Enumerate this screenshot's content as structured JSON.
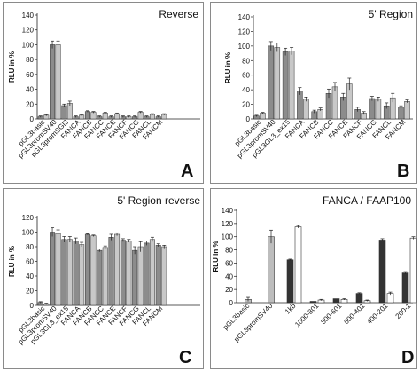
{
  "chart_data": [
    {
      "panel": "A",
      "type": "bar",
      "title": "Reverse",
      "ylabel": "RLU in %",
      "ylim": [
        0,
        140
      ],
      "yticks": [
        0,
        20,
        40,
        60,
        80,
        100,
        120,
        140
      ],
      "categories": [
        "pGL3basic",
        "pGL3promSV40",
        "pGL3promSGl3",
        "FANCA",
        "FANCB",
        "FANCC",
        "FANCE",
        "FANCF",
        "FANCG",
        "FANCL",
        "FANCM"
      ],
      "series": [
        {
          "color": "#8c8c8c",
          "values": [
            3,
            100,
            18,
            3,
            10,
            3,
            3,
            3,
            3,
            3,
            3
          ],
          "errors": [
            1,
            5,
            2,
            1,
            1,
            1,
            1,
            1,
            1,
            1,
            1
          ]
        },
        {
          "color": "#c8c8c8",
          "values": [
            5,
            100,
            21,
            5,
            9,
            8,
            7,
            3,
            9,
            6,
            6
          ],
          "errors": [
            1,
            5,
            3,
            1,
            1,
            1,
            1,
            1,
            1,
            1,
            1
          ]
        }
      ]
    },
    {
      "panel": "B",
      "type": "bar",
      "title": "5' Region",
      "ylabel": "RLU in %",
      "ylim": [
        0,
        140
      ],
      "yticks": [
        0,
        20,
        40,
        60,
        80,
        100,
        120,
        140
      ],
      "categories": [
        "pGL3basic",
        "pGL3promSV40",
        "pGL3GL3_ex15",
        "FANCA",
        "FANCB",
        "FANCC",
        "FANCE",
        "FANCF",
        "FANCG",
        "FANCL",
        "FANCM"
      ],
      "series": [
        {
          "color": "#8c8c8c",
          "values": [
            4,
            100,
            92,
            38,
            10,
            35,
            30,
            13,
            28,
            18,
            16
          ],
          "errors": [
            1,
            6,
            5,
            5,
            2,
            6,
            5,
            3,
            3,
            4,
            2
          ]
        },
        {
          "color": "#c8c8c8",
          "values": [
            8,
            98,
            93,
            27,
            13,
            44,
            48,
            8,
            27,
            29,
            24
          ],
          "errors": [
            1,
            6,
            5,
            3,
            2,
            6,
            8,
            2,
            3,
            6,
            2
          ]
        }
      ]
    },
    {
      "panel": "C",
      "type": "bar",
      "title": "5' Region reverse",
      "ylabel": "RLU in %",
      "ylim": [
        0,
        120
      ],
      "yticks": [
        0,
        20,
        40,
        60,
        80,
        100,
        120
      ],
      "categories": [
        "pGL3basic",
        "pGL3promSV40",
        "pGL3GL3_ex15",
        "FANCA",
        "FANCB",
        "FANCC",
        "FANCE",
        "FANCF",
        "FANCG",
        "FANCL",
        "FANCM"
      ],
      "series": [
        {
          "color": "#8c8c8c",
          "values": [
            4,
            100,
            90,
            88,
            97,
            75,
            93,
            89,
            75,
            85,
            82
          ],
          "errors": [
            1,
            6,
            4,
            4,
            1,
            2,
            4,
            2,
            5,
            3,
            2
          ]
        },
        {
          "color": "#c8c8c8",
          "values": [
            2,
            98,
            90,
            83,
            95,
            79,
            97,
            88,
            80,
            90,
            80
          ],
          "errors": [
            1,
            5,
            4,
            3,
            1,
            2,
            2,
            2,
            7,
            3,
            2
          ]
        }
      ]
    },
    {
      "panel": "D",
      "type": "bar",
      "title": "FANCA / FAAP100",
      "ylabel": "RLU in %",
      "ylim": [
        0,
        140
      ],
      "yticks": [
        0,
        20,
        40,
        60,
        80,
        100,
        120,
        140
      ],
      "categories": [
        "pGL3basic",
        "pGL3promSV40",
        "1kb",
        "1000-801",
        "800-601",
        "600-401",
        "400-201",
        "200-1"
      ],
      "bars": [
        {
          "category": "pGL3basic",
          "slot": "center",
          "color": "#bdbdbd",
          "value": 5,
          "error": 3
        },
        {
          "category": "pGL3promSV40",
          "slot": "center",
          "color": "#bdbdbd",
          "value": 100,
          "error": 10
        },
        {
          "category": "1kb",
          "slot": "left",
          "color": "#333333",
          "value": 65,
          "error": 1
        },
        {
          "category": "1kb",
          "slot": "right",
          "color": "#ffffff",
          "value": 115,
          "error": 2
        },
        {
          "category": "1000-801",
          "slot": "left",
          "color": "#333333",
          "value": 2,
          "error": 0
        },
        {
          "category": "1000-801",
          "slot": "right",
          "color": "#ffffff",
          "value": 4,
          "error": 1
        },
        {
          "category": "800-601",
          "slot": "left",
          "color": "#333333",
          "value": 6,
          "error": 0
        },
        {
          "category": "800-601",
          "slot": "right",
          "color": "#ffffff",
          "value": 5,
          "error": 1
        },
        {
          "category": "600-401",
          "slot": "left",
          "color": "#333333",
          "value": 14,
          "error": 1
        },
        {
          "category": "600-401",
          "slot": "right",
          "color": "#ffffff",
          "value": 3,
          "error": 1
        },
        {
          "category": "400-201",
          "slot": "left",
          "color": "#333333",
          "value": 95,
          "error": 2
        },
        {
          "category": "400-201",
          "slot": "right",
          "color": "#ffffff",
          "value": 14,
          "error": 2
        },
        {
          "category": "200-1",
          "slot": "left",
          "color": "#333333",
          "value": 45,
          "error": 2
        },
        {
          "category": "200-1",
          "slot": "right",
          "color": "#ffffff",
          "value": 98,
          "error": 2
        }
      ]
    }
  ]
}
